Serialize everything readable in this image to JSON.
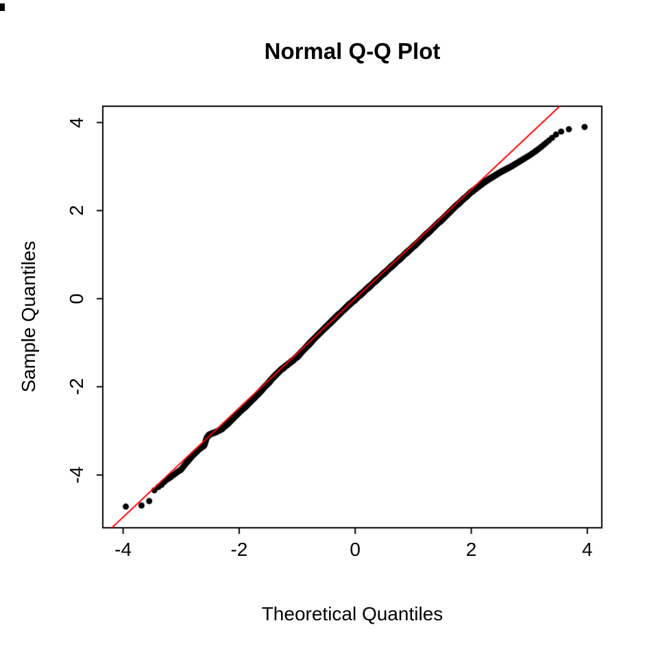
{
  "page": {
    "background": "#FFFFFF"
  },
  "chart_data": {
    "type": "scatter",
    "variant": "normal-qq-plot",
    "title": "Normal Q-Q Plot",
    "xlabel": "Theoretical Quantiles",
    "ylabel": "Sample Quantiles",
    "xlim": [
      -4.35,
      4.25
    ],
    "ylim": [
      -5.2,
      4.37
    ],
    "x_ticks": [
      -4,
      -2,
      0,
      2,
      4
    ],
    "y_ticks": [
      -4,
      -2,
      0,
      2,
      4
    ],
    "x_tick_labels": [
      "-4",
      "-2",
      "0",
      "2",
      "4"
    ],
    "y_tick_labels": [
      "-4",
      "-2",
      "0",
      "2",
      "4"
    ],
    "grid": false,
    "legend": "none",
    "point_style": {
      "color": "#000000",
      "radius": 4.5,
      "shape": "filled-circle"
    },
    "ref_line": {
      "slope": 1.24,
      "intercept": 0.0,
      "color": "#FF0000",
      "width": 2
    },
    "n_points": 13000,
    "qq_curve": [
      [
        -3.96,
        -4.72
      ],
      [
        -3.72,
        -4.7
      ],
      [
        -3.58,
        -4.68
      ],
      [
        -3.47,
        -4.36
      ],
      [
        -3.4,
        -4.28
      ],
      [
        -3.33,
        -4.22
      ],
      [
        -3.27,
        -4.13
      ],
      [
        -3.2,
        -4.07
      ],
      [
        -3.13,
        -4.0
      ],
      [
        -3.06,
        -3.93
      ],
      [
        -3.0,
        -3.88
      ],
      [
        -2.93,
        -3.76
      ],
      [
        -2.87,
        -3.67
      ],
      [
        -2.81,
        -3.57
      ],
      [
        -2.75,
        -3.5
      ],
      [
        -2.7,
        -3.43
      ],
      [
        -2.65,
        -3.38
      ],
      [
        -2.6,
        -3.33
      ],
      [
        -2.56,
        -3.16
      ],
      [
        -2.52,
        -3.09
      ],
      [
        -2.47,
        -3.06
      ],
      [
        -2.42,
        -3.04
      ],
      [
        -2.36,
        -3.0
      ],
      [
        -2.3,
        -2.96
      ],
      [
        -2.24,
        -2.89
      ],
      [
        -2.18,
        -2.82
      ],
      [
        -2.12,
        -2.74
      ],
      [
        -2.06,
        -2.66
      ],
      [
        -2.0,
        -2.58
      ],
      [
        -1.9,
        -2.46
      ],
      [
        -1.8,
        -2.33
      ],
      [
        -1.7,
        -2.2
      ],
      [
        -1.6,
        -2.06
      ],
      [
        -1.5,
        -1.92
      ],
      [
        -1.4,
        -1.77
      ],
      [
        -1.3,
        -1.64
      ],
      [
        -1.2,
        -1.53
      ],
      [
        -1.1,
        -1.43
      ],
      [
        -1.0,
        -1.32
      ],
      [
        -0.9,
        -1.18
      ],
      [
        -0.8,
        -1.04
      ],
      [
        -0.7,
        -0.9
      ],
      [
        -0.6,
        -0.77
      ],
      [
        -0.5,
        -0.64
      ],
      [
        -0.4,
        -0.51
      ],
      [
        -0.3,
        -0.38
      ],
      [
        -0.2,
        -0.26
      ],
      [
        -0.1,
        -0.13
      ],
      [
        0.0,
        -0.02
      ],
      [
        0.1,
        0.1
      ],
      [
        0.2,
        0.22
      ],
      [
        0.3,
        0.34
      ],
      [
        0.4,
        0.46
      ],
      [
        0.5,
        0.58
      ],
      [
        0.6,
        0.7
      ],
      [
        0.7,
        0.82
      ],
      [
        0.8,
        0.94
      ],
      [
        0.9,
        1.06
      ],
      [
        1.0,
        1.18
      ],
      [
        1.1,
        1.3
      ],
      [
        1.2,
        1.43
      ],
      [
        1.3,
        1.55
      ],
      [
        1.4,
        1.68
      ],
      [
        1.5,
        1.8
      ],
      [
        1.6,
        1.93
      ],
      [
        1.7,
        2.06
      ],
      [
        1.8,
        2.18
      ],
      [
        1.9,
        2.3
      ],
      [
        2.0,
        2.42
      ],
      [
        2.1,
        2.52
      ],
      [
        2.2,
        2.62
      ],
      [
        2.3,
        2.71
      ],
      [
        2.4,
        2.79
      ],
      [
        2.5,
        2.87
      ],
      [
        2.6,
        2.94
      ],
      [
        2.7,
        3.01
      ],
      [
        2.8,
        3.09
      ],
      [
        2.9,
        3.17
      ],
      [
        3.0,
        3.25
      ],
      [
        3.1,
        3.34
      ],
      [
        3.2,
        3.44
      ],
      [
        3.3,
        3.55
      ],
      [
        3.4,
        3.66
      ],
      [
        3.5,
        3.77
      ],
      [
        3.6,
        3.82
      ],
      [
        3.72,
        3.86
      ],
      [
        3.95,
        3.9
      ]
    ]
  }
}
